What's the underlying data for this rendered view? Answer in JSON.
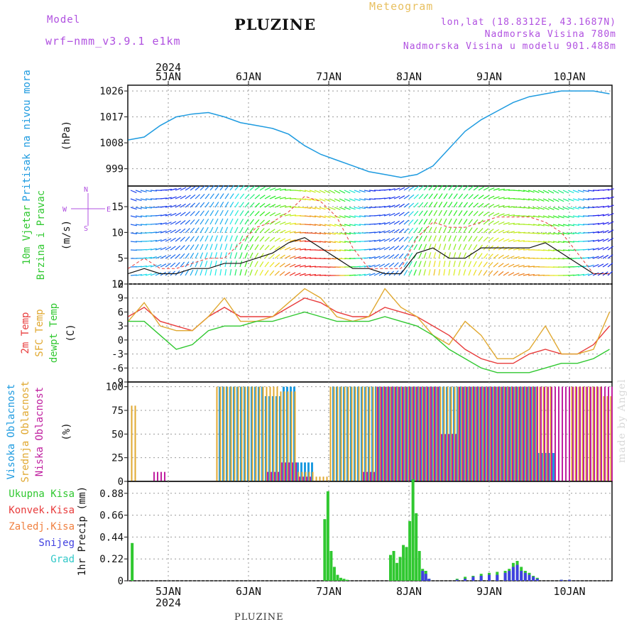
{
  "header": {
    "model_label": "Model",
    "model_name": "wrf−nmm_v3.9.1  e1km",
    "meteogram_label": "Meteogram",
    "station": "PLUZINE",
    "coords": "lon,lat (18.8312E, 43.1687N)",
    "elevation": "Nadmorska Visina 780m",
    "model_elevation": "Nadmorska Visina u modelu 901.488m"
  },
  "footer_station": "PLUZINE",
  "watermark": "made by Angel",
  "x_axis": {
    "year": "2024",
    "days": [
      "5JAN",
      "6JAN",
      "7JAN",
      "8JAN",
      "9JAN",
      "10JAN"
    ]
  },
  "colors": {
    "pressure": "#1e9be0",
    "temp2m": "#e83c3c",
    "sfc_temp": "#e0a830",
    "dewpt": "#30c830",
    "cloud_high": "#1e9be0",
    "cloud_mid": "#e0a830",
    "cloud_low": "#c020a0",
    "precip_total": "#30c830",
    "precip_conv": "#e83c3c",
    "precip_frz": "#f08040",
    "precip_snow": "#4040e0",
    "precip_graupel": "#30c8c8",
    "wind_label_purple": "#b050e0"
  },
  "chart_data": [
    {
      "type": "line",
      "title": "",
      "ylabel": "Pritisak na nivou mora",
      "unit": "(hPa)",
      "ylim": [
        993,
        1028
      ],
      "yticks": [
        999,
        1008,
        1017,
        1026
      ],
      "x_unit": "days from 00Z 5 JAN 2024",
      "x": [
        -0.5,
        -0.3,
        -0.1,
        0.1,
        0.3,
        0.5,
        0.7,
        0.9,
        1.1,
        1.3,
        1.5,
        1.7,
        1.9,
        2.1,
        2.3,
        2.5,
        2.7,
        2.9,
        3.1,
        3.3,
        3.5,
        3.7,
        3.9,
        4.1,
        4.3,
        4.5,
        4.7,
        4.9,
        5.1,
        5.3,
        5.5
      ],
      "series": [
        {
          "name": "",
          "values": [
            1009,
            1010,
            1014,
            1017,
            1018,
            1018.5,
            1017,
            1015,
            1014,
            1013,
            1011,
            1007,
            1004,
            1002,
            1000,
            998,
            997,
            996,
            997,
            1000,
            1006,
            1012,
            1016,
            1019,
            1022,
            1024,
            1025,
            1026,
            1026,
            1026,
            1025
          ]
        }
      ]
    },
    {
      "type": "line",
      "title": "",
      "ylabel": "10m Vjetar Brzina i Pravac",
      "unit": "(m/s)",
      "ylim": [
        0,
        19
      ],
      "yticks": [
        0,
        5,
        10,
        15
      ],
      "compass_labels": {
        "w": "W",
        "e": "E",
        "n": "N",
        "s": "S"
      },
      "x": [
        -0.5,
        -0.3,
        -0.1,
        0.1,
        0.3,
        0.5,
        0.7,
        0.9,
        1.1,
        1.3,
        1.5,
        1.7,
        1.9,
        2.1,
        2.3,
        2.5,
        2.7,
        2.9,
        3.1,
        3.3,
        3.5,
        3.7,
        3.9,
        4.1,
        4.3,
        4.5,
        4.7,
        4.9,
        5.1,
        5.3,
        5.5
      ],
      "series": [
        {
          "name": "",
          "values": [
            2,
            3,
            2,
            2,
            3,
            3,
            4,
            4,
            5,
            6,
            8,
            9,
            7,
            5,
            3,
            3,
            2,
            2,
            6,
            7,
            5,
            5,
            7,
            7,
            7,
            7,
            8,
            6,
            4,
            2,
            2
          ]
        },
        {
          "name": "gust",
          "values": [
            3,
            5,
            3,
            3,
            4,
            5,
            5,
            8,
            11,
            12,
            14,
            17,
            16,
            13,
            7,
            3,
            3,
            3,
            9,
            12,
            11,
            11,
            12,
            13,
            13,
            13,
            12,
            10,
            6,
            2,
            2
          ]
        }
      ]
    },
    {
      "type": "line",
      "title": "",
      "ylabel": "2m Temp / SFC Temp / dewpt Temp",
      "unit": "(C)",
      "ylim": [
        -9,
        12
      ],
      "yticks": [
        -9,
        -6,
        -3,
        0,
        3,
        6,
        9,
        12
      ],
      "x": [
        -0.5,
        -0.3,
        -0.1,
        0.1,
        0.3,
        0.5,
        0.7,
        0.9,
        1.1,
        1.3,
        1.5,
        1.7,
        1.9,
        2.1,
        2.3,
        2.5,
        2.7,
        2.9,
        3.1,
        3.3,
        3.5,
        3.7,
        3.9,
        4.1,
        4.3,
        4.5,
        4.7,
        4.9,
        5.1,
        5.3,
        5.5
      ],
      "series": [
        {
          "name": "2m Temp",
          "values": [
            5,
            7,
            4,
            3,
            2,
            5,
            7,
            5,
            5,
            5,
            7,
            9,
            8,
            6,
            5,
            5,
            7,
            6,
            5,
            3,
            1,
            -2,
            -4,
            -5,
            -5,
            -3,
            -2,
            -3,
            -3,
            -1,
            3
          ]
        },
        {
          "name": "SFC Temp",
          "values": [
            4,
            8,
            3,
            2,
            2,
            5,
            9,
            4,
            4,
            5,
            8,
            11,
            9,
            5,
            4,
            5,
            11,
            7,
            5,
            1,
            -1,
            4,
            1,
            -4,
            -4,
            -2,
            3,
            -3,
            -3,
            -2,
            6
          ]
        },
        {
          "name": "dewpt Temp",
          "values": [
            4,
            4,
            1,
            -2,
            -1,
            2,
            3,
            3,
            4,
            4,
            5,
            6,
            5,
            4,
            4,
            4,
            5,
            4,
            3,
            1,
            -2,
            -4,
            -6,
            -7,
            -7,
            -7,
            -6,
            -5,
            -5,
            -4,
            -2
          ]
        }
      ]
    },
    {
      "type": "bar",
      "title": "",
      "ylabel": "Visoka Oblacnost / Srednja Oblacnost / Niska Oblacnost",
      "unit": "(%)",
      "ylim": [
        0,
        105
      ],
      "yticks": [
        0,
        25,
        50,
        75,
        100
      ],
      "x": [
        -0.5,
        -0.3,
        -0.1,
        0.1,
        0.3,
        0.5,
        0.7,
        0.9,
        1.1,
        1.3,
        1.5,
        1.7,
        1.9,
        2.1,
        2.3,
        2.5,
        2.7,
        2.9,
        3.1,
        3.3,
        3.5,
        3.7,
        3.9,
        4.1,
        4.3,
        4.5,
        4.7,
        4.9,
        5.1,
        5.3,
        5.5
      ],
      "series": [
        {
          "name": "Visoka Oblacnost",
          "values": [
            0,
            0,
            0,
            0,
            0,
            0,
            100,
            100,
            100,
            90,
            100,
            20,
            0,
            100,
            100,
            100,
            100,
            100,
            100,
            100,
            100,
            100,
            100,
            100,
            100,
            100,
            30,
            0,
            0,
            0,
            0
          ]
        },
        {
          "name": "Srednja Oblacnost",
          "values": [
            80,
            0,
            0,
            0,
            0,
            0,
            100,
            100,
            100,
            100,
            95,
            10,
            5,
            100,
            100,
            100,
            100,
            100,
            100,
            100,
            100,
            100,
            100,
            100,
            100,
            100,
            100,
            0,
            100,
            100,
            90
          ]
        },
        {
          "name": "Niska Oblacnost",
          "values": [
            0,
            0,
            10,
            0,
            0,
            0,
            0,
            0,
            0,
            10,
            20,
            5,
            0,
            0,
            0,
            10,
            100,
            100,
            100,
            100,
            50,
            100,
            100,
            100,
            100,
            100,
            100,
            100,
            100,
            100,
            100
          ]
        }
      ]
    },
    {
      "type": "bar",
      "title": "",
      "ylabel": "1hr Precip",
      "unit": "(mm)",
      "ylim": [
        0,
        1.0
      ],
      "yticks": [
        0,
        0.22,
        0.44,
        0.66,
        0.88
      ],
      "legend": [
        "Ukupna Kisa",
        "Konvek.Kisa",
        "Zaledj.Kisa",
        "Snijeg",
        "Grad"
      ],
      "x": [
        -0.45,
        1.95,
        1.99,
        2.03,
        2.07,
        2.11,
        2.15,
        2.19,
        2.23,
        2.77,
        2.81,
        2.85,
        2.89,
        2.93,
        2.97,
        3.01,
        3.05,
        3.09,
        3.13,
        3.17,
        3.21,
        3.25,
        3.6,
        3.7,
        3.8,
        3.9,
        4.0,
        4.1,
        4.2,
        4.25,
        4.3,
        4.35,
        4.4,
        4.45,
        4.5,
        4.55,
        4.6,
        4.9,
        5.0
      ],
      "series": [
        {
          "name": "Ukupna Kisa",
          "values": [
            0.38,
            0.62,
            0.9,
            0.3,
            0.14,
            0.06,
            0.03,
            0.02,
            0.01,
            0.26,
            0.3,
            0.18,
            0.24,
            0.36,
            0.34,
            0.6,
            1.02,
            0.68,
            0.3,
            0.12,
            0.1,
            0.02,
            0.02,
            0.04,
            0.05,
            0.07,
            0.08,
            0.09,
            0.1,
            0.12,
            0.18,
            0.2,
            0.14,
            0.1,
            0.08,
            0.05,
            0.03,
            0.01,
            0.01
          ]
        },
        {
          "name": "Snijeg",
          "values": [
            0,
            0,
            0,
            0,
            0,
            0,
            0,
            0,
            0,
            0,
            0,
            0,
            0,
            0,
            0,
            0,
            0,
            0,
            0,
            0.1,
            0.07,
            0.02,
            0.01,
            0.02,
            0.04,
            0.05,
            0.06,
            0.06,
            0.08,
            0.1,
            0.14,
            0.16,
            0.1,
            0.08,
            0.06,
            0.04,
            0.02,
            0.01,
            0.01
          ]
        }
      ]
    }
  ]
}
